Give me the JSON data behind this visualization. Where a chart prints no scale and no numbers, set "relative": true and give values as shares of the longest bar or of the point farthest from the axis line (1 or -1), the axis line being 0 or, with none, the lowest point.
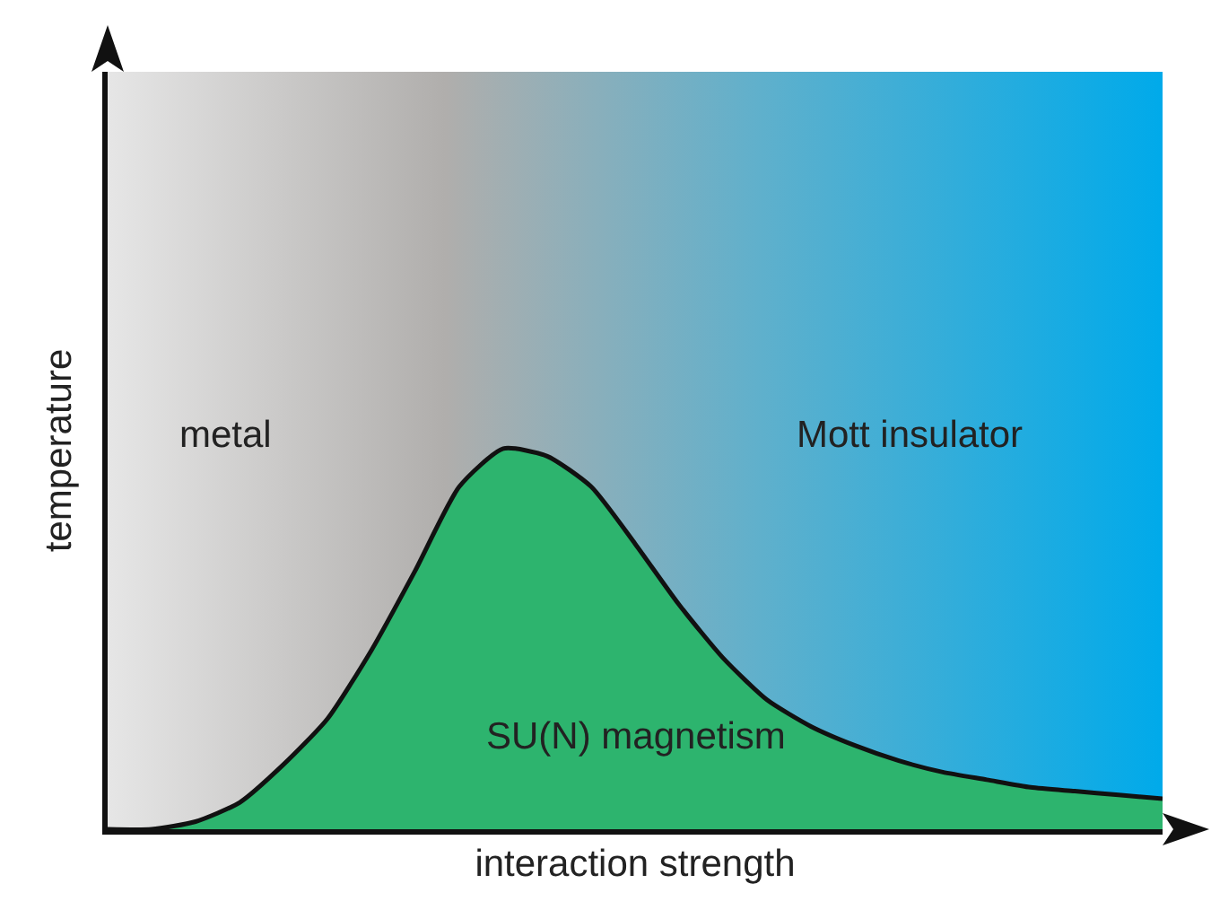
{
  "chart_data": {
    "type": "area",
    "relative": true,
    "xlabel": "interaction strength",
    "ylabel": "temperature",
    "categories": [
      null,
      null,
      null,
      null,
      null,
      null,
      null,
      null,
      null,
      null,
      null,
      null,
      null,
      null,
      null,
      null,
      null,
      null,
      null,
      null,
      null,
      null,
      null,
      null,
      null
    ],
    "series": [
      {
        "color": "#2db46e",
        "values": [
          0,
          0,
          0.02,
          0.07,
          0.17,
          0.29,
          0.47,
          0.68,
          0.9,
          1,
          0.98,
          0.9,
          0.75,
          0.59,
          0.45,
          0.34,
          0.27,
          0.22,
          0.18,
          0.15,
          0.13,
          0.11,
          0.1,
          0.09,
          0.08
        ]
      }
    ],
    "annotations": [
      "metal",
      "Mott insulator",
      "SU(N) magnetism"
    ],
    "grid": false,
    "marker": "none",
    "line_style": "solid"
  }
}
